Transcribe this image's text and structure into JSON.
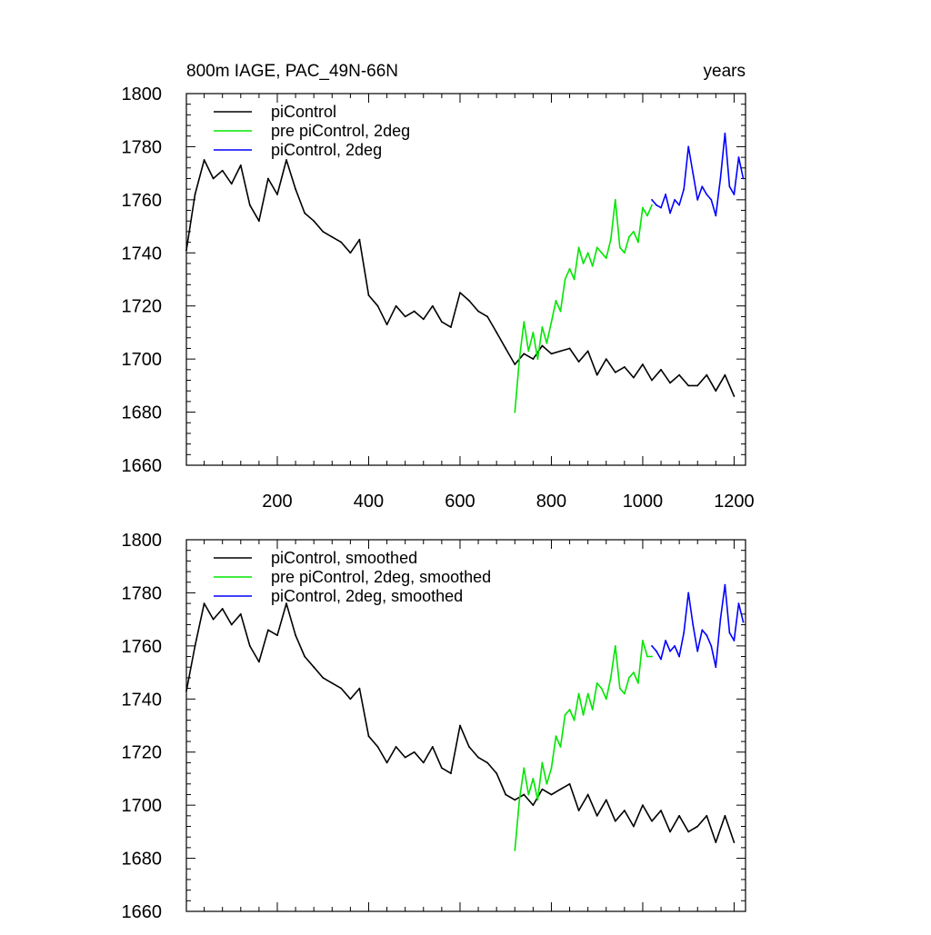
{
  "chart_data": [
    {
      "type": "line",
      "title_left": "800m IAGE, PAC_49N-66N",
      "title_right": "years",
      "xlabel": "",
      "ylabel": "",
      "xlim": [
        1,
        1225
      ],
      "ylim": [
        1660,
        1800
      ],
      "xticks": [
        200,
        400,
        600,
        800,
        1000,
        1200
      ],
      "xtick_labels": [
        "200",
        "400",
        "600",
        "800",
        "1000",
        "1200"
      ],
      "yticks": [
        1660,
        1680,
        1700,
        1720,
        1740,
        1760,
        1780,
        1800
      ],
      "ytick_labels": [
        "1660",
        "1680",
        "1700",
        "1720",
        "1740",
        "1760",
        "1780",
        "1800"
      ],
      "legend_position": "top-left",
      "series": [
        {
          "name": "piControl",
          "color": "#000000",
          "x": [
            1,
            20,
            40,
            60,
            80,
            100,
            120,
            140,
            160,
            180,
            200,
            220,
            240,
            260,
            280,
            300,
            320,
            340,
            360,
            380,
            400,
            420,
            440,
            460,
            480,
            500,
            520,
            540,
            560,
            580,
            600,
            620,
            640,
            660,
            680,
            700,
            720,
            740,
            760,
            780,
            800,
            820,
            840,
            860,
            880,
            900,
            920,
            940,
            960,
            980,
            1000,
            1020,
            1040,
            1060,
            1080,
            1100,
            1120,
            1140,
            1160,
            1180,
            1200
          ],
          "values": [
            1741,
            1762,
            1775,
            1768,
            1771,
            1766,
            1773,
            1758,
            1752,
            1768,
            1762,
            1775,
            1764,
            1755,
            1752,
            1748,
            1746,
            1744,
            1740,
            1745,
            1724,
            1720,
            1713,
            1720,
            1716,
            1718,
            1715,
            1720,
            1714,
            1712,
            1725,
            1722,
            1718,
            1716,
            1710,
            1704,
            1698,
            1702,
            1700,
            1705,
            1702,
            1703,
            1704,
            1699,
            1703,
            1694,
            1700,
            1695,
            1697,
            1693,
            1698,
            1692,
            1696,
            1691,
            1694,
            1690,
            1690,
            1694,
            1688,
            1694,
            1686
          ]
        },
        {
          "name": "pre piControl, 2deg",
          "color": "#00e600",
          "x": [
            720,
            730,
            740,
            750,
            760,
            770,
            780,
            790,
            800,
            810,
            820,
            830,
            840,
            850,
            860,
            870,
            880,
            890,
            900,
            910,
            920,
            930,
            940,
            950,
            960,
            970,
            980,
            990,
            1000,
            1010,
            1020
          ],
          "values": [
            1680,
            1700,
            1714,
            1703,
            1710,
            1700,
            1712,
            1706,
            1714,
            1722,
            1718,
            1730,
            1734,
            1730,
            1742,
            1736,
            1740,
            1735,
            1742,
            1740,
            1738,
            1745,
            1760,
            1742,
            1740,
            1746,
            1748,
            1744,
            1757,
            1754,
            1758
          ]
        },
        {
          "name": "piControl, 2deg",
          "color": "#0000ff",
          "x": [
            1020,
            1030,
            1040,
            1050,
            1060,
            1070,
            1080,
            1090,
            1100,
            1110,
            1120,
            1130,
            1140,
            1150,
            1160,
            1170,
            1180,
            1190,
            1200,
            1210,
            1220
          ],
          "values": [
            1760,
            1758,
            1757,
            1762,
            1755,
            1760,
            1758,
            1764,
            1780,
            1770,
            1760,
            1765,
            1762,
            1760,
            1754,
            1768,
            1785,
            1765,
            1762,
            1776,
            1768
          ]
        }
      ]
    },
    {
      "type": "line",
      "xlabel": "",
      "ylabel": "",
      "xlim": [
        1,
        1225
      ],
      "ylim": [
        1660,
        1800
      ],
      "xticks": [
        200,
        400,
        600,
        800,
        1000,
        1200
      ],
      "yticks": [
        1660,
        1680,
        1700,
        1720,
        1740,
        1760,
        1780,
        1800
      ],
      "ytick_labels": [
        "1660",
        "1680",
        "1700",
        "1720",
        "1740",
        "1760",
        "1780",
        "1800"
      ],
      "legend_position": "top-left",
      "series": [
        {
          "name": "piControl, smoothed",
          "color": "#000000",
          "x": [
            1,
            20,
            40,
            60,
            80,
            100,
            120,
            140,
            160,
            180,
            200,
            220,
            240,
            260,
            280,
            300,
            320,
            340,
            360,
            380,
            400,
            420,
            440,
            460,
            480,
            500,
            520,
            540,
            560,
            580,
            600,
            620,
            640,
            660,
            680,
            700,
            720,
            740,
            760,
            780,
            800,
            820,
            840,
            860,
            880,
            900,
            920,
            940,
            960,
            980,
            1000,
            1020,
            1040,
            1060,
            1080,
            1100,
            1120,
            1140,
            1160,
            1180,
            1200
          ],
          "values": [
            1743,
            1760,
            1776,
            1770,
            1774,
            1768,
            1772,
            1760,
            1754,
            1766,
            1764,
            1776,
            1764,
            1756,
            1752,
            1748,
            1746,
            1744,
            1740,
            1744,
            1726,
            1722,
            1716,
            1722,
            1718,
            1720,
            1716,
            1722,
            1714,
            1712,
            1730,
            1722,
            1718,
            1716,
            1712,
            1704,
            1702,
            1704,
            1700,
            1706,
            1704,
            1706,
            1708,
            1698,
            1704,
            1696,
            1702,
            1694,
            1698,
            1692,
            1700,
            1694,
            1698,
            1690,
            1696,
            1690,
            1692,
            1696,
            1686,
            1696,
            1686
          ]
        },
        {
          "name": "pre piControl, 2deg, smoothed",
          "color": "#00e600",
          "x": [
            720,
            730,
            740,
            750,
            760,
            770,
            780,
            790,
            800,
            810,
            820,
            830,
            840,
            850,
            860,
            870,
            880,
            890,
            900,
            910,
            920,
            930,
            940,
            950,
            960,
            970,
            980,
            990,
            1000,
            1010,
            1020
          ],
          "values": [
            1683,
            1702,
            1714,
            1704,
            1710,
            1702,
            1716,
            1708,
            1714,
            1726,
            1722,
            1734,
            1736,
            1732,
            1742,
            1734,
            1742,
            1736,
            1746,
            1744,
            1740,
            1748,
            1760,
            1744,
            1742,
            1748,
            1750,
            1746,
            1762,
            1756,
            1756
          ]
        },
        {
          "name": "piControl, 2deg, smoothed",
          "color": "#0000ff",
          "x": [
            1020,
            1030,
            1040,
            1050,
            1060,
            1070,
            1080,
            1090,
            1100,
            1110,
            1120,
            1130,
            1140,
            1150,
            1160,
            1170,
            1180,
            1190,
            1200,
            1210,
            1220
          ],
          "values": [
            1760,
            1758,
            1755,
            1762,
            1758,
            1760,
            1756,
            1765,
            1780,
            1768,
            1758,
            1766,
            1764,
            1760,
            1752,
            1770,
            1783,
            1765,
            1762,
            1776,
            1769
          ]
        }
      ]
    }
  ]
}
